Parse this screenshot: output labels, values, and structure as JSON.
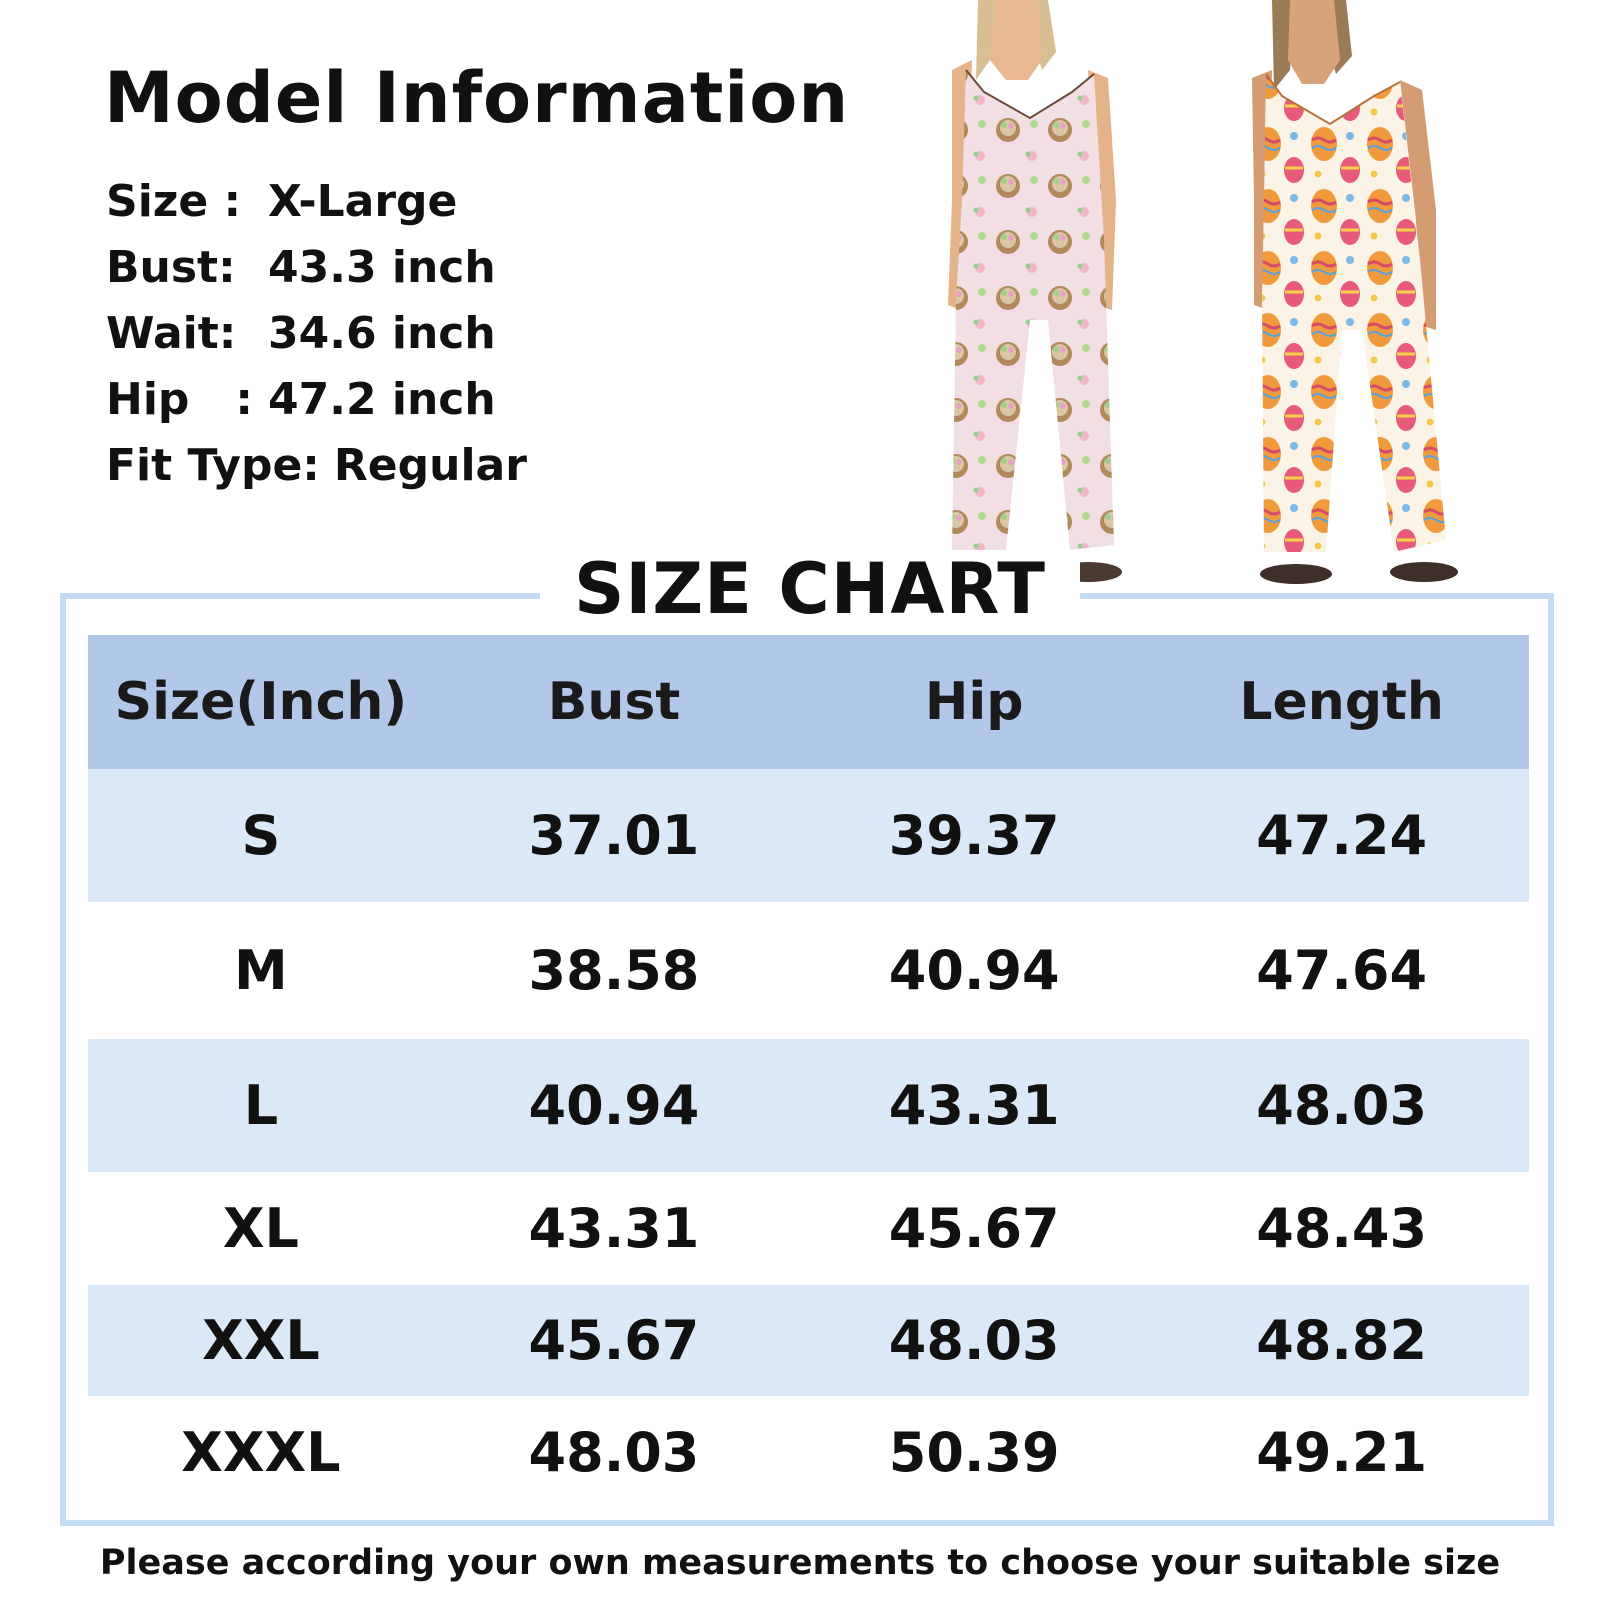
{
  "model_info": {
    "title": "Model Information",
    "rows": [
      {
        "label": "Size :",
        "value": "X-Large"
      },
      {
        "label": "Bust:",
        "value": "43.3 inch"
      },
      {
        "label": "Wait:",
        "value": "34.6 inch"
      },
      {
        "label": "Hip   :",
        "value": "47.2 inch"
      },
      {
        "label": "Fit Type:",
        "value": "Regular"
      }
    ]
  },
  "size_chart": {
    "title": "SIZE CHART",
    "headers": [
      "Size(Inch)",
      "Bust",
      "Hip",
      "Length"
    ],
    "rows": [
      [
        "S",
        "37.01",
        "39.37",
        "47.24"
      ],
      [
        "M",
        "38.58",
        "40.94",
        "47.64"
      ],
      [
        "L",
        "40.94",
        "43.31",
        "48.03"
      ],
      [
        "XL",
        "43.31",
        "45.67",
        "48.43"
      ],
      [
        "XXL",
        "45.67",
        "48.03",
        "48.82"
      ],
      [
        "XXXL",
        "48.03",
        "50.39",
        "49.21"
      ]
    ]
  },
  "footer": {
    "note": "Please according your own measurements to choose your suitable size"
  },
  "colors": {
    "header_row": "#b2c8e9",
    "stripe_row": "#dbe8f7",
    "frame_border": "#c3dcf3",
    "text": "#111111"
  },
  "images": {
    "left_model": "model-photo-easter-basket-print-jumpsuit",
    "right_model": "model-photo-easter-egg-print-jumpsuit"
  }
}
